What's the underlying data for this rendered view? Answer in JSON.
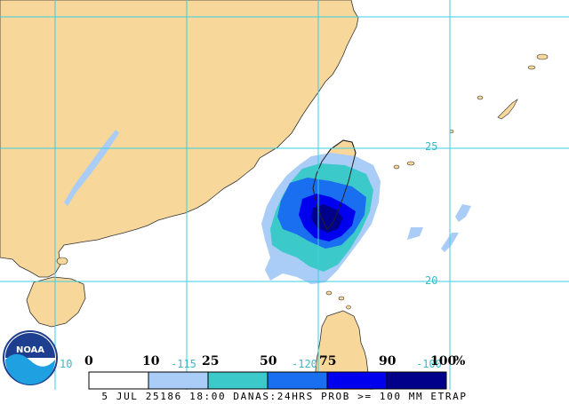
{
  "colors": {
    "land": "#f7d79a",
    "ocean": "#ffffff",
    "coast": "#333333",
    "grid": "#3ecfe0",
    "prob_10": "#a9cdf7",
    "prob_25": "#3cc9c9",
    "prob_50": "#1a6ff0",
    "prob_75": "#0000ee",
    "prob_90": "#00008b"
  },
  "grid_labels": {
    "lat_25": "25",
    "lat_20": "20",
    "lon_115": "-115",
    "lon_120": "-120",
    "lon_100": "-100",
    "left_10": "10"
  },
  "legend": {
    "ticks": [
      "0",
      "10",
      "25",
      "50",
      "75",
      "90",
      "100",
      "%"
    ],
    "swatch_colors": [
      "#ffffff",
      "#a9cdf7",
      "#3cc9c9",
      "#1a6ff0",
      "#0000ee",
      "#00008b"
    ]
  },
  "caption": "5 JUL 25186 18:00 DANAS:24HRS PROB >= 100 MM ETRAP",
  "logo": {
    "text": "NOAA",
    "icon": "noaa-logo-icon"
  }
}
